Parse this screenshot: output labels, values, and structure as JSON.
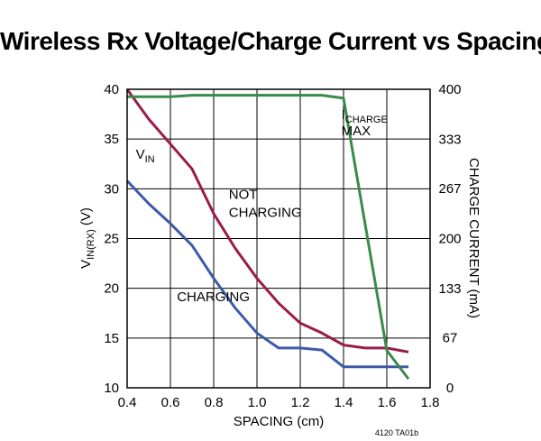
{
  "title": "Wireless Rx Voltage/Charge Current vs Spacing",
  "figure_note": "4120 TA01b",
  "chart_data": {
    "type": "line",
    "title": "Wireless Rx Voltage/Charge Current vs Spacing",
    "xlabel": "SPACING (cm)",
    "ylabel": {
      "main": "V",
      "sub": "IN(RX)",
      "unit": " (V)"
    },
    "y2label": "CHARGE CURRENT (mA)",
    "xlim": [
      0.4,
      1.8
    ],
    "ylim": [
      10,
      40
    ],
    "y2lim": [
      0,
      400
    ],
    "x_ticks": [
      "0.4",
      "0.6",
      "0.8",
      "1.0",
      "1.2",
      "1.4",
      "1.6",
      "1.8"
    ],
    "y_ticks": [
      "10",
      "15",
      "20",
      "25",
      "30",
      "35",
      "40"
    ],
    "y2_ticks": [
      "0",
      "67",
      "133",
      "200",
      "267",
      "333",
      "400"
    ],
    "grid": true,
    "series": [
      {
        "name": "NOT CHARGING",
        "axis": "left",
        "color": "#9b1b4a",
        "x": [
          0.4,
          0.5,
          0.6,
          0.7,
          0.8,
          0.9,
          1.0,
          1.1,
          1.2,
          1.3,
          1.4,
          1.5,
          1.6,
          1.7
        ],
        "y": [
          40,
          37,
          34.5,
          32,
          27.5,
          24,
          21,
          18.5,
          16.5,
          15.5,
          14.3,
          14,
          14,
          13.6
        ]
      },
      {
        "name": "CHARGING",
        "axis": "left",
        "color": "#3d5aa8",
        "x": [
          0.4,
          0.5,
          0.6,
          0.7,
          0.8,
          0.9,
          1.0,
          1.1,
          1.2,
          1.3,
          1.4,
          1.5,
          1.6,
          1.7
        ],
        "y": [
          30.8,
          28.5,
          26.5,
          24.3,
          21,
          18,
          15.5,
          14,
          14,
          13.8,
          12.1,
          12.1,
          12.1,
          12.1
        ]
      },
      {
        "name": "I CHARGE MAX",
        "axis": "right",
        "color": "#3a8a4a",
        "x": [
          0.4,
          0.5,
          0.6,
          0.7,
          0.8,
          0.9,
          1.0,
          1.1,
          1.2,
          1.3,
          1.4,
          1.6,
          1.7
        ],
        "y": [
          390,
          390,
          390,
          392,
          392,
          392,
          392,
          392,
          392,
          392,
          388,
          50,
          12
        ]
      }
    ],
    "annotations": [
      {
        "main": "V",
        "sub": "IN",
        "x": 0.44,
        "y": 33
      },
      {
        "lines": [
          "NOT",
          "CHARGING"
        ],
        "x": 0.87,
        "y": 29
      },
      {
        "main": "I",
        "sub": "CHARGE",
        "line2": "MAX",
        "x": 1.39,
        "y": 37
      },
      {
        "text": "CHARGING",
        "x": 0.63,
        "y": 18.7
      }
    ]
  }
}
